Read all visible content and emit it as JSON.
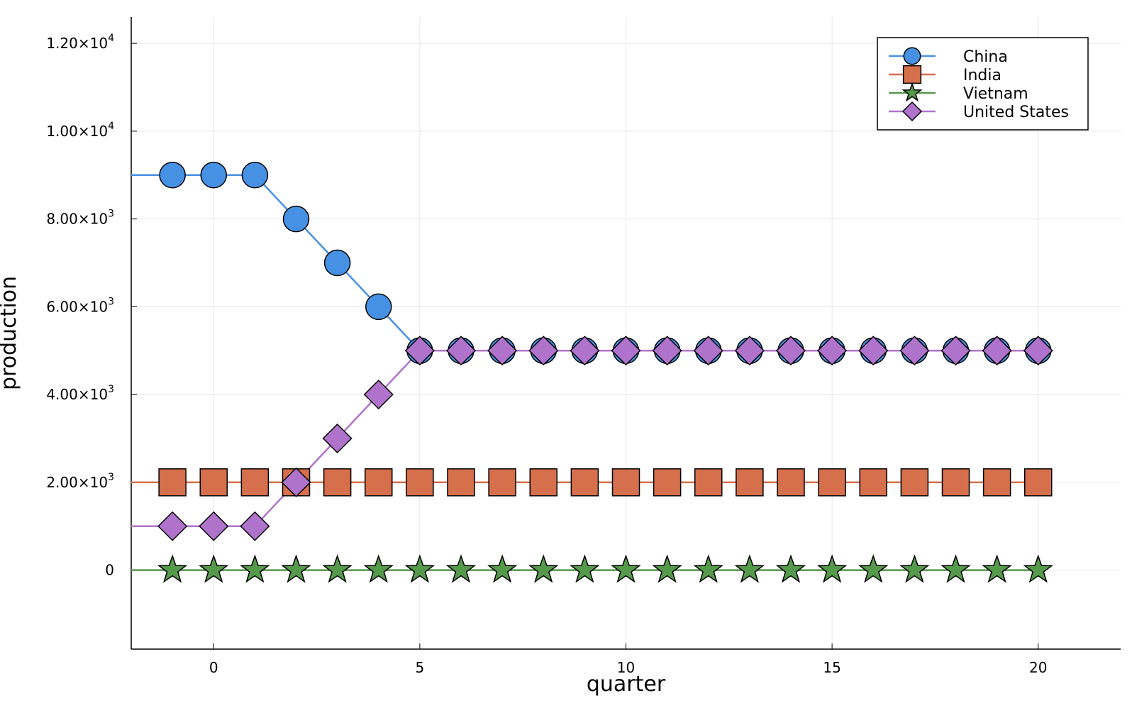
{
  "chart_data": {
    "type": "line",
    "xlabel": "quarter",
    "ylabel": "production",
    "xlim": [
      -2,
      22
    ],
    "ylim": [
      -1800,
      12600
    ],
    "x_ticks": [
      0,
      5,
      10,
      15,
      20
    ],
    "y_ticks": [
      {
        "value": 0,
        "mantissa": "0",
        "exp": ""
      },
      {
        "value": 2000,
        "mantissa": "2.00×10",
        "exp": "3"
      },
      {
        "value": 4000,
        "mantissa": "4.00×10",
        "exp": "3"
      },
      {
        "value": 6000,
        "mantissa": "6.00×10",
        "exp": "3"
      },
      {
        "value": 8000,
        "mantissa": "8.00×10",
        "exp": "3"
      },
      {
        "value": 10000,
        "mantissa": "1.00×10",
        "exp": "4"
      },
      {
        "value": 12000,
        "mantissa": "1.20×10",
        "exp": "4"
      }
    ],
    "grid": true,
    "legend_position": "top-right",
    "x": [
      -1,
      0,
      1,
      2,
      3,
      4,
      5,
      6,
      7,
      8,
      9,
      10,
      11,
      12,
      13,
      14,
      15,
      16,
      17,
      18,
      19,
      20
    ],
    "line_start_x": -2,
    "series": [
      {
        "name": "China",
        "color": "#4691e3",
        "marker": "circle",
        "start_value": 9000,
        "values": [
          9000,
          9000,
          9000,
          8000,
          7000,
          6000,
          5000,
          5000,
          5000,
          5000,
          5000,
          5000,
          5000,
          5000,
          5000,
          5000,
          5000,
          5000,
          5000,
          5000,
          5000,
          5000
        ]
      },
      {
        "name": "India",
        "color": "#d56f4c",
        "marker": "square",
        "start_value": 2000,
        "values": [
          2000,
          2000,
          2000,
          2000,
          2000,
          2000,
          2000,
          2000,
          2000,
          2000,
          2000,
          2000,
          2000,
          2000,
          2000,
          2000,
          2000,
          2000,
          2000,
          2000,
          2000,
          2000
        ]
      },
      {
        "name": "Vietnam",
        "color": "#55994a",
        "marker": "star",
        "start_value": 0,
        "values": [
          0,
          0,
          0,
          0,
          0,
          0,
          0,
          0,
          0,
          0,
          0,
          0,
          0,
          0,
          0,
          0,
          0,
          0,
          0,
          0,
          0,
          0
        ]
      },
      {
        "name": "United States",
        "color": "#b073cb",
        "marker": "diamond",
        "start_value": 1000,
        "values": [
          1000,
          1000,
          1000,
          2000,
          3000,
          4000,
          5000,
          5000,
          5000,
          5000,
          5000,
          5000,
          5000,
          5000,
          5000,
          5000,
          5000,
          5000,
          5000,
          5000,
          5000,
          5000
        ]
      }
    ]
  }
}
